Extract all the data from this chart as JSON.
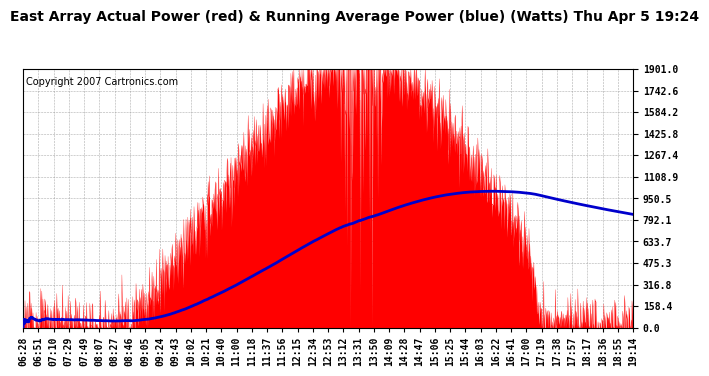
{
  "title": "East Array Actual Power (red) & Running Average Power (blue) (Watts) Thu Apr 5 19:24",
  "copyright": "Copyright 2007 Cartronics.com",
  "y_max": 1901.0,
  "y_min": 0.0,
  "yticks": [
    0.0,
    158.4,
    316.8,
    475.3,
    633.7,
    792.1,
    950.5,
    1108.9,
    1267.4,
    1425.8,
    1584.2,
    1742.6,
    1901.0
  ],
  "background_color": "#ffffff",
  "plot_bg_color": "#ffffff",
  "grid_color": "#999999",
  "bar_color": "#ff0000",
  "avg_color": "#0000cc",
  "title_fontsize": 10,
  "copyright_fontsize": 7,
  "tick_fontsize": 7,
  "x_labels": [
    "06:28",
    "06:51",
    "07:10",
    "07:29",
    "07:49",
    "08:07",
    "08:27",
    "08:46",
    "09:05",
    "09:24",
    "09:43",
    "10:02",
    "10:21",
    "10:40",
    "11:00",
    "11:18",
    "11:37",
    "11:56",
    "12:15",
    "12:34",
    "12:53",
    "13:12",
    "13:31",
    "13:50",
    "14:09",
    "14:28",
    "14:47",
    "15:06",
    "15:25",
    "15:44",
    "16:03",
    "16:22",
    "16:41",
    "17:00",
    "17:19",
    "17:38",
    "17:57",
    "18:17",
    "18:36",
    "18:55",
    "19:14"
  ]
}
